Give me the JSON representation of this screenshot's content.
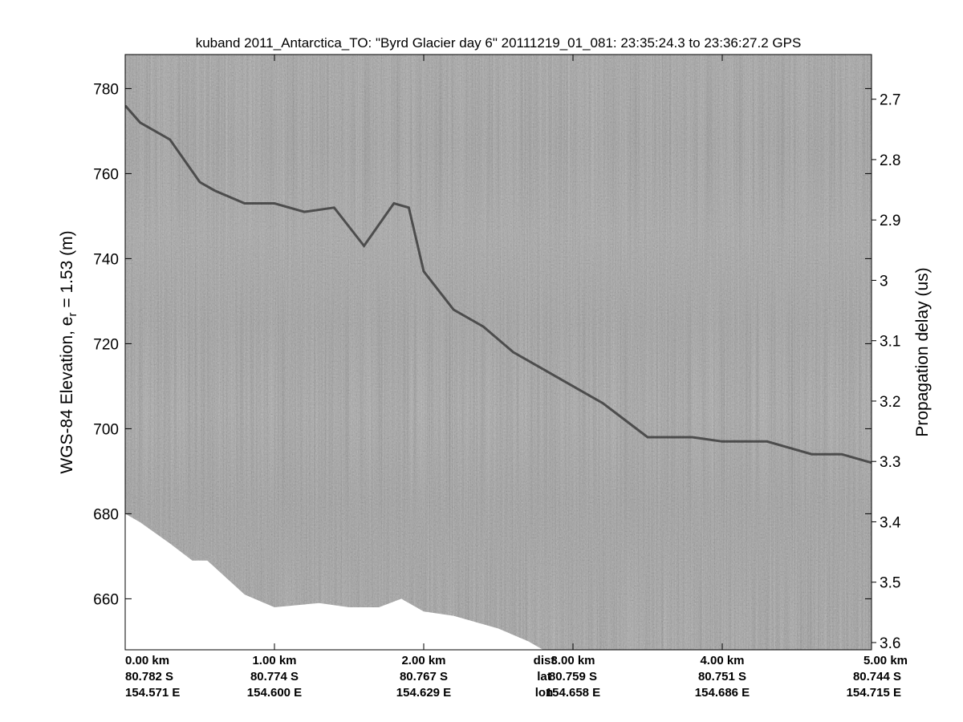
{
  "chart_data": {
    "type": "heatmap",
    "title": "kuband 2011_Antarctica_TO: \"Byrd Glacier day 6\"  20111219_01_081: 23:35:24.3 to 23:36:27.2 GPS",
    "ylabel": "WGS-84 Elevation, e",
    "ylabel_sub": "r",
    "ylabel_tail": " = 1.53 (m)",
    "y2label": "Propagation delay (us)",
    "ylim": [
      648,
      788
    ],
    "y_ticks": [
      660,
      680,
      700,
      720,
      740,
      760,
      780
    ],
    "y2lim": [
      2.626,
      3.612
    ],
    "y2_ticks": [
      2.7,
      2.8,
      2.9,
      3,
      3.1,
      3.2,
      3.3,
      3.4,
      3.5,
      3.6
    ],
    "y2_tick_labels": [
      "2.7",
      "2.8",
      "2.9",
      "3",
      "3.1",
      "3.2",
      "3.3",
      "3.4",
      "3.5",
      "3.6"
    ],
    "xlim": [
      0,
      5
    ],
    "x_ticks": [
      {
        "x": 0,
        "dist": "0.00 km",
        "lat": "80.782 S",
        "lon": "154.571 E"
      },
      {
        "x": 1,
        "dist": "1.00 km",
        "lat": "80.774 S",
        "lon": "154.600 E"
      },
      {
        "x": 2,
        "dist": "2.00 km",
        "lat": "80.767 S",
        "lon": "154.629 E"
      },
      {
        "x": 3,
        "dist": "3.00 km",
        "lat": "80.759 S",
        "lon": "154.658 E"
      },
      {
        "x": 4,
        "dist": "4.00 km",
        "lat": "80.751 S",
        "lon": "154.686 E"
      },
      {
        "x": 5,
        "dist": "5.00 km",
        "lat": "80.744 S",
        "lon": "154.715 E"
      }
    ],
    "x_row_labels": {
      "x": 2.5,
      "dist": "dist",
      "lat": "lat",
      "lon": "lon"
    },
    "surface_elevation": {
      "x": [
        0,
        0.1,
        0.3,
        0.5,
        0.6,
        0.8,
        1.0,
        1.2,
        1.4,
        1.6,
        1.8,
        1.9,
        2.0,
        2.2,
        2.4,
        2.6,
        2.8
      ],
      "y": [
        776,
        772,
        768,
        758,
        756,
        753,
        753,
        751,
        752,
        743,
        753,
        752,
        737,
        728,
        724,
        718,
        714
      ]
    },
    "surface_elevation_b": {
      "x": [
        2.8,
        3.0,
        3.2,
        3.5,
        3.8,
        4.0,
        4.3,
        4.6,
        4.8,
        5.0
      ],
      "y": [
        714,
        710,
        706,
        698,
        698,
        697,
        697,
        694,
        694,
        692
      ]
    },
    "data_bottom_boundary": {
      "x": [
        0,
        0.1,
        0.3,
        0.45,
        0.55,
        0.8,
        1.0,
        1.3,
        1.5,
        1.7,
        1.85,
        2.0,
        2.2,
        2.5,
        2.7,
        2.8
      ],
      "y": [
        680,
        678,
        673,
        669,
        669,
        661,
        658,
        659,
        658,
        658,
        660,
        657,
        656,
        653,
        650,
        648
      ]
    },
    "grid": false,
    "colormap": "gray"
  }
}
